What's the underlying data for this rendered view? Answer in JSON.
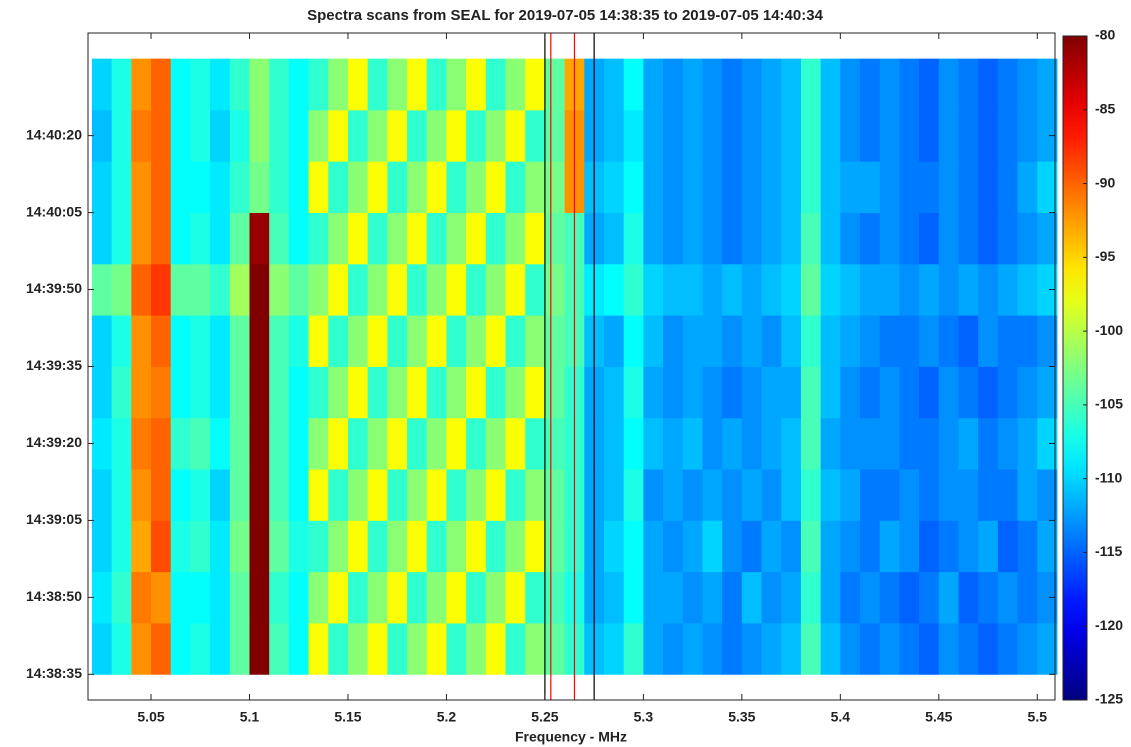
{
  "chart_data": {
    "type": "heatmap",
    "title": "Spectra scans from SEAL for 2019-07-05 14:38:35 to 2019-07-05 14:40:34",
    "x_label": "Frequency - MHz",
    "x": [
      5.025,
      5.035,
      5.045,
      5.055,
      5.065,
      5.075,
      5.085,
      5.095,
      5.105,
      5.115,
      5.125,
      5.135,
      5.145,
      5.155,
      5.165,
      5.175,
      5.185,
      5.195,
      5.205,
      5.215,
      5.225,
      5.235,
      5.245,
      5.255,
      5.265,
      5.275,
      5.285,
      5.295,
      5.305,
      5.315,
      5.325,
      5.335,
      5.345,
      5.355,
      5.365,
      5.375,
      5.385,
      5.395,
      5.405,
      5.415,
      5.425,
      5.435,
      5.445,
      5.455,
      5.465,
      5.475,
      5.485,
      5.495,
      5.505
    ],
    "y": [
      52720,
      52730,
      52740,
      52750,
      52760,
      52770,
      52780,
      52790,
      52800,
      52810,
      52820,
      52830
    ],
    "z": [
      [
        -110,
        -107,
        -92,
        -90,
        -108,
        -107,
        -109,
        -104,
        -80,
        -105,
        -108,
        -97,
        -106,
        -102,
        -97,
        -106,
        -102,
        -97,
        -106,
        -102,
        -97,
        -106,
        -102,
        -104,
        -106,
        -111,
        -110,
        -106,
        -112,
        -113,
        -112,
        -113,
        -114,
        -113,
        -112,
        -111,
        -105,
        -111,
        -113,
        -114,
        -113,
        -114,
        -115,
        -113,
        -114,
        -115,
        -114,
        -113,
        -112
      ],
      [
        -109,
        -106,
        -91,
        -92,
        -108,
        -108,
        -109,
        -104,
        -80,
        -106,
        -108,
        -102,
        -97,
        -106,
        -102,
        -97,
        -106,
        -102,
        -97,
        -106,
        -102,
        -97,
        -106,
        -105,
        -107,
        -112,
        -111,
        -108,
        -112,
        -112,
        -113,
        -112,
        -114,
        -111,
        -113,
        -112,
        -106,
        -112,
        -114,
        -113,
        -114,
        -115,
        -114,
        -112,
        -115,
        -114,
        -113,
        -114,
        -113
      ],
      [
        -110,
        -107,
        -93,
        -89,
        -107,
        -106,
        -109,
        -103,
        -80,
        -104,
        -107,
        -106,
        -102,
        -97,
        -106,
        -102,
        -97,
        -106,
        -102,
        -97,
        -106,
        -102,
        -97,
        -104,
        -106,
        -112,
        -110,
        -108,
        -112,
        -113,
        -112,
        -110,
        -113,
        -114,
        -112,
        -113,
        -105,
        -112,
        -113,
        -114,
        -112,
        -113,
        -115,
        -114,
        -113,
        -112,
        -115,
        -114,
        -112
      ],
      [
        -110,
        -107,
        -92,
        -90,
        -108,
        -107,
        -110,
        -104,
        -80,
        -105,
        -108,
        -97,
        -106,
        -102,
        -97,
        -106,
        -102,
        -97,
        -106,
        -102,
        -97,
        -106,
        -102,
        -104,
        -106,
        -112,
        -111,
        -107,
        -113,
        -112,
        -113,
        -112,
        -113,
        -112,
        -113,
        -111,
        -106,
        -111,
        -112,
        -114,
        -114,
        -113,
        -114,
        -113,
        -113,
        -114,
        -114,
        -112,
        -113
      ],
      [
        -109,
        -107,
        -91,
        -90,
        -106,
        -105,
        -108,
        -104,
        -80,
        -105,
        -108,
        -102,
        -97,
        -106,
        -102,
        -97,
        -106,
        -102,
        -97,
        -106,
        -102,
        -97,
        -106,
        -105,
        -106,
        -112,
        -111,
        -108,
        -111,
        -112,
        -111,
        -113,
        -112,
        -113,
        -112,
        -111,
        -105,
        -112,
        -113,
        -113,
        -113,
        -114,
        -114,
        -113,
        -112,
        -114,
        -113,
        -112,
        -110
      ],
      [
        -110,
        -106,
        -92,
        -91,
        -108,
        -107,
        -109,
        -104,
        -80,
        -105,
        -108,
        -106,
        -102,
        -97,
        -106,
        -102,
        -97,
        -106,
        -102,
        -97,
        -106,
        -102,
        -97,
        -104,
        -106,
        -112,
        -111,
        -107,
        -112,
        -113,
        -112,
        -113,
        -114,
        -113,
        -112,
        -112,
        -105,
        -111,
        -113,
        -114,
        -113,
        -114,
        -115,
        -113,
        -114,
        -115,
        -114,
        -113,
        -112
      ],
      [
        -110,
        -107,
        -92,
        -90,
        -108,
        -107,
        -109,
        -104,
        -80,
        -105,
        -107,
        -97,
        -106,
        -102,
        -97,
        -106,
        -102,
        -97,
        -106,
        -102,
        -97,
        -106,
        -102,
        -104,
        -105,
        -111,
        -112,
        -108,
        -111,
        -113,
        -112,
        -112,
        -113,
        -112,
        -113,
        -111,
        -106,
        -111,
        -112,
        -113,
        -114,
        -114,
        -113,
        -114,
        -115,
        -113,
        -114,
        -114,
        -113
      ],
      [
        -104,
        -103,
        -90,
        -88,
        -104,
        -104,
        -106,
        -101,
        -80,
        -102,
        -104,
        -102,
        -97,
        -106,
        -102,
        -97,
        -106,
        -102,
        -97,
        -106,
        -102,
        -97,
        -106,
        -103,
        -105,
        -109,
        -108,
        -106,
        -110,
        -111,
        -111,
        -112,
        -111,
        -112,
        -111,
        -110,
        -104,
        -110,
        -111,
        -112,
        -112,
        -113,
        -112,
        -113,
        -112,
        -113,
        -112,
        -111,
        -110
      ],
      [
        -110,
        -107,
        -92,
        -90,
        -108,
        -107,
        -109,
        -104,
        -81,
        -105,
        -108,
        -106,
        -102,
        -97,
        -106,
        -102,
        -97,
        -106,
        -102,
        -97,
        -106,
        -102,
        -97,
        -104,
        -105,
        -112,
        -111,
        -107,
        -112,
        -113,
        -112,
        -113,
        -114,
        -113,
        -112,
        -111,
        -105,
        -111,
        -113,
        -114,
        -113,
        -114,
        -115,
        -113,
        -114,
        -115,
        -114,
        -113,
        -112
      ],
      [
        -110,
        -107,
        -92,
        -90,
        -108,
        -108,
        -109,
        -106,
        -103,
        -106,
        -108,
        -97,
        -106,
        -102,
        -97,
        -106,
        -102,
        -97,
        -106,
        -102,
        -97,
        -106,
        -102,
        -103,
        -92,
        -111,
        -110,
        -108,
        -112,
        -113,
        -112,
        -113,
        -114,
        -113,
        -112,
        -111,
        -106,
        -111,
        -112,
        -112,
        -113,
        -114,
        -114,
        -113,
        -114,
        -115,
        -114,
        -112,
        -110
      ],
      [
        -111,
        -107,
        -91,
        -90,
        -108,
        -107,
        -110,
        -107,
        -102,
        -106,
        -108,
        -102,
        -97,
        -106,
        -102,
        -97,
        -106,
        -102,
        -97,
        -106,
        -102,
        -97,
        -106,
        -104,
        -92,
        -112,
        -111,
        -109,
        -112,
        -113,
        -112,
        -113,
        -114,
        -113,
        -112,
        -111,
        -106,
        -111,
        -113,
        -114,
        -113,
        -114,
        -115,
        -113,
        -114,
        -115,
        -114,
        -113,
        -112
      ],
      [
        -110,
        -107,
        -92,
        -90,
        -108,
        -107,
        -109,
        -106,
        -102,
        -106,
        -108,
        -106,
        -102,
        -97,
        -106,
        -102,
        -97,
        -106,
        -102,
        -97,
        -106,
        -102,
        -97,
        -104,
        -93,
        -112,
        -111,
        -108,
        -112,
        -113,
        -112,
        -113,
        -114,
        -113,
        -112,
        -111,
        -106,
        -111,
        -113,
        -114,
        -113,
        -114,
        -115,
        -113,
        -114,
        -115,
        -114,
        -113,
        -112
      ]
    ],
    "xlim": [
      5.018,
      5.509
    ],
    "xticks": [
      5.05,
      {
        "value": 5.1,
        "label": "5.1"
      },
      5.15,
      {
        "value": 5.2,
        "label": "5.2"
      },
      5.25,
      {
        "value": 5.3,
        "label": "5.3"
      },
      5.35,
      {
        "value": 5.4,
        "label": "5.4"
      },
      5.45,
      {
        "value": 5.5,
        "label": "5.5"
      }
    ],
    "ylim": [
      52710,
      52840
    ],
    "yticks": [
      {
        "value": 52715,
        "label": "14:38:35"
      },
      {
        "value": 52730,
        "label": "14:38:50"
      },
      {
        "value": 52745,
        "label": "14:39:05"
      },
      {
        "value": 52760,
        "label": "14:39:20"
      },
      {
        "value": 52775,
        "label": "14:39:35"
      },
      {
        "value": 52790,
        "label": "14:39:50"
      },
      {
        "value": 52805,
        "label": "14:40:05"
      },
      {
        "value": 52820,
        "label": "14:40:20"
      }
    ],
    "zlim": [
      -125,
      -80
    ],
    "zticks": [
      -80,
      -85,
      -90,
      -95,
      -100,
      -105,
      -110,
      -115,
      -120,
      -125
    ],
    "colormap": "jet",
    "vlines": [
      {
        "value": 5.25,
        "color": "#000000"
      },
      {
        "value": 5.253,
        "color": "#ff0000"
      },
      {
        "value": 5.265,
        "color": "#ff0000"
      },
      {
        "value": 5.275,
        "color": "#000000"
      }
    ]
  }
}
